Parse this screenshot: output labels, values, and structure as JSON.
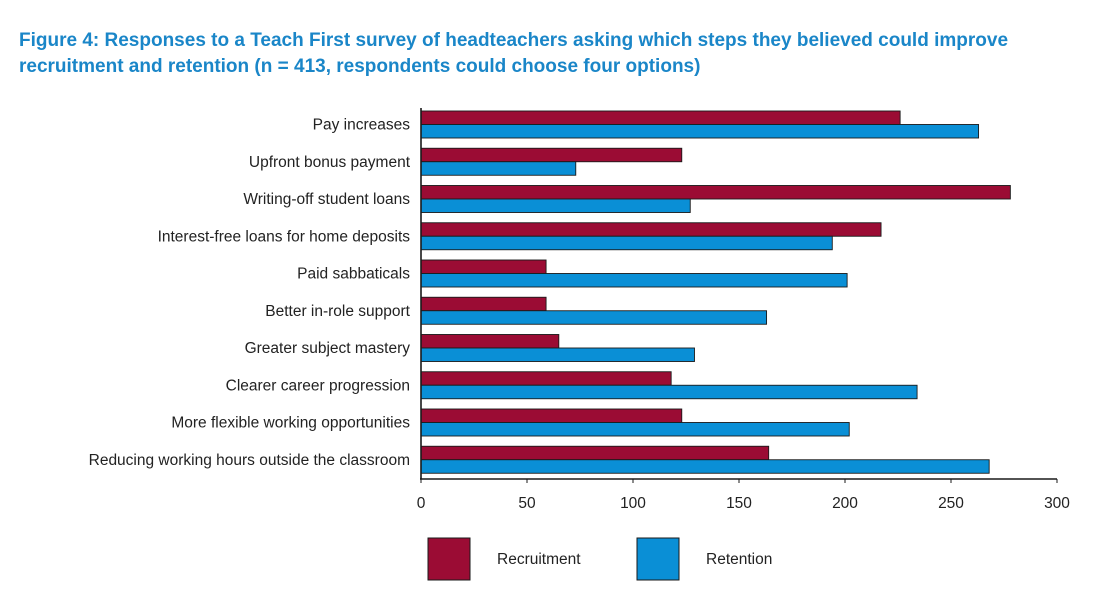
{
  "chart_data": {
    "type": "bar",
    "orientation": "horizontal",
    "title": "Figure 4: Responses to a Teach First survey of headteachers asking which steps they believed could improve recruitment and retention (n = 413, respondents could choose four options)",
    "categories": [
      "Pay increases",
      "Upfront bonus payment",
      "Writing-off student loans",
      "Interest-free loans for home deposits",
      "Paid sabbaticals",
      "Better in-role support",
      "Greater subject mastery",
      "Clearer career progression",
      "More flexible working opportunities",
      "Reducing working hours outside the classroom"
    ],
    "series": [
      {
        "name": "Recruitment",
        "color": "#9b0c34",
        "values": [
          226,
          123,
          278,
          217,
          59,
          59,
          65,
          118,
          123,
          164
        ]
      },
      {
        "name": "Retention",
        "color": "#0a8fd6",
        "values": [
          263,
          73,
          127,
          194,
          201,
          163,
          129,
          234,
          202,
          268
        ]
      }
    ],
    "xlim": [
      0,
      300
    ],
    "xticks": [
      0,
      50,
      100,
      150,
      200,
      250,
      300
    ],
    "grid": false,
    "legend_position": "bottom-center"
  }
}
